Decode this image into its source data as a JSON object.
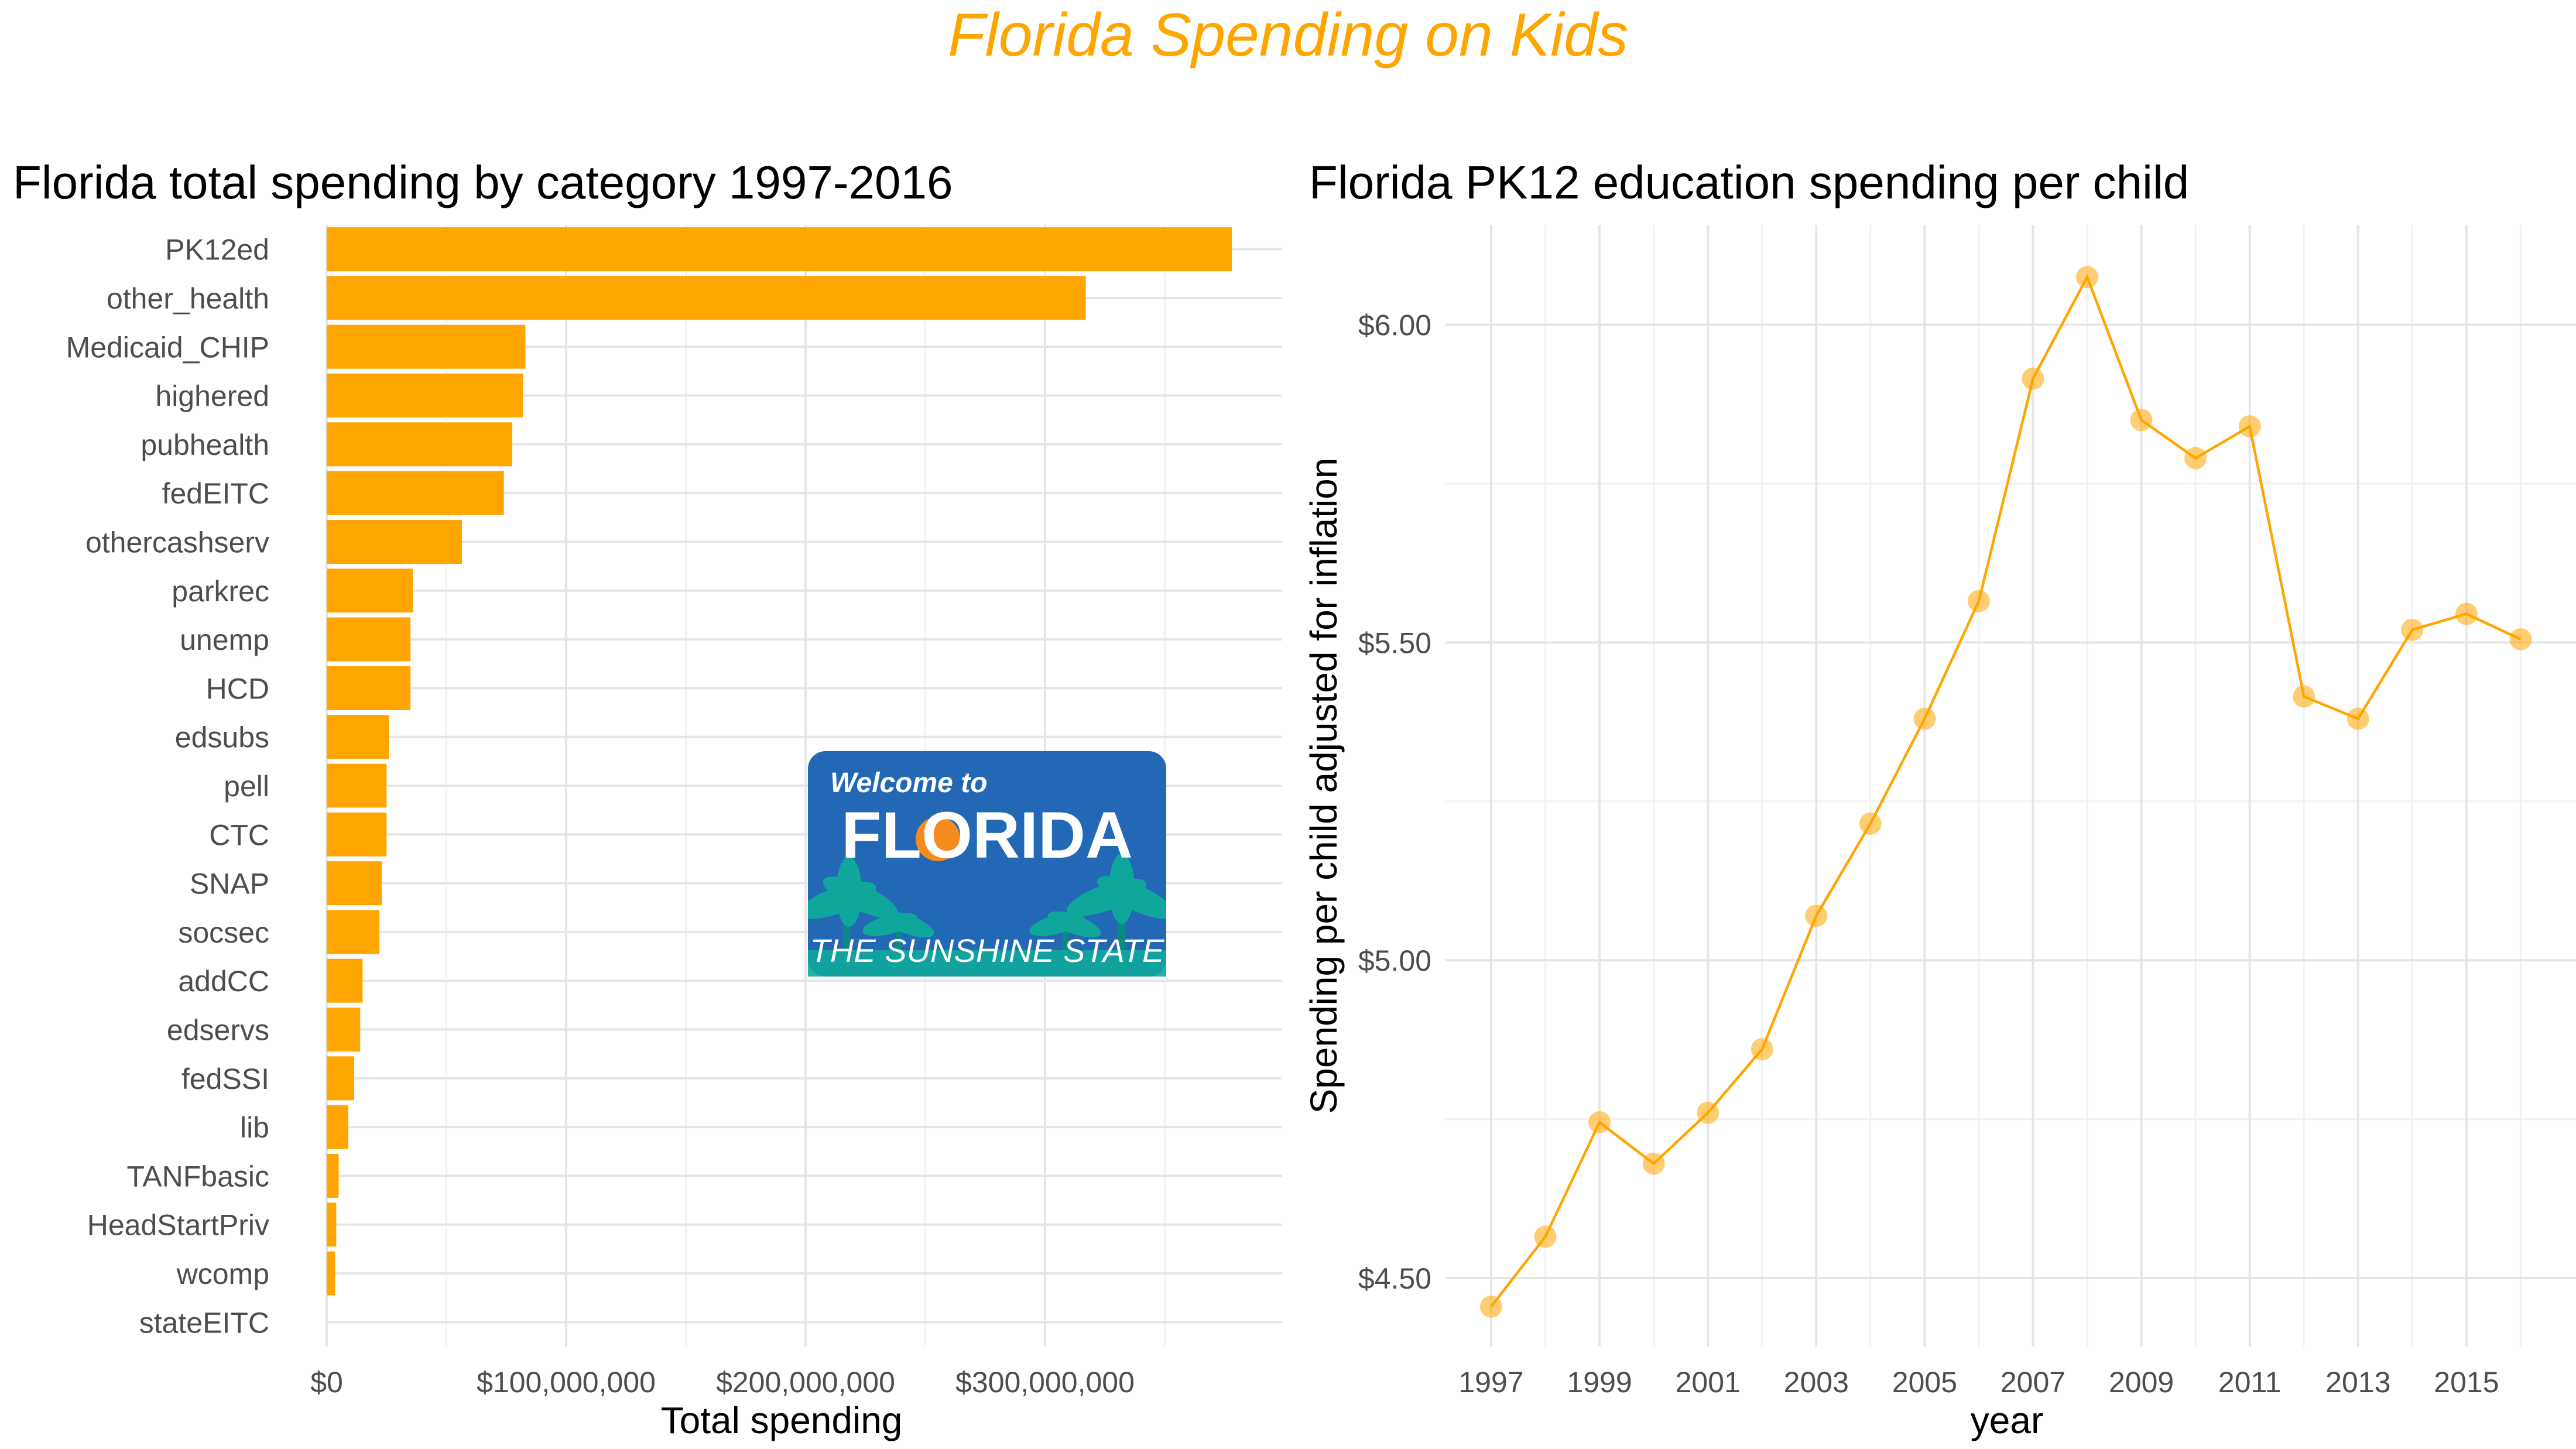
{
  "page": {
    "title": "Florida Spending on Kids",
    "title_color": "#FFA500"
  },
  "sign": {
    "line1": "Welcome to",
    "line2": "FLORIDA",
    "line3": "THE SUNSHINE STATE",
    "bg_color": "#2268b4",
    "palm_color": "#0fa79b",
    "sun_color": "#f58a1f"
  },
  "chart_data": [
    {
      "type": "bar",
      "orientation": "horizontal",
      "title": "Florida total spending by category 1997-2016",
      "xlabel": "Total spending",
      "ylabel": "",
      "color": "#FFA500",
      "grid": true,
      "xlim": [
        0,
        400000000
      ],
      "x_ticks": [
        0,
        100000000,
        200000000,
        300000000
      ],
      "x_tick_labels": [
        "$0",
        "$100,000,000",
        "$200,000,000",
        "$300,000,000"
      ],
      "categories": [
        "PK12ed",
        "other_health",
        "Medicaid_CHIP",
        "highered",
        "pubhealth",
        "fedEITC",
        "othercashserv",
        "parkrec",
        "unemp",
        "HCD",
        "edsubs",
        "pell",
        "CTC",
        "SNAP",
        "socsec",
        "addCC",
        "edservs",
        "fedSSI",
        "lib",
        "TANFbasic",
        "HeadStartPriv",
        "wcomp",
        "stateEITC"
      ],
      "values": [
        378000000,
        317000000,
        83000000,
        82000000,
        77500000,
        74000000,
        56500000,
        36000000,
        35000000,
        35000000,
        26000000,
        25000000,
        25000000,
        23000000,
        22000000,
        15000000,
        14000000,
        11500000,
        9000000,
        5000000,
        4000000,
        3500000,
        0
      ]
    },
    {
      "type": "line",
      "markers": true,
      "title": "Florida PK12 education spending per child",
      "xlabel": "year",
      "ylabel": "Spending per child adjusted for inflation",
      "color": "#FFA500",
      "grid": true,
      "xlim": [
        1996.9,
        2017.9
      ],
      "ylim": [
        4.4187,
        6.1713
      ],
      "x_ticks": [
        1997,
        1999,
        2001,
        2003,
        2005,
        2007,
        2009,
        2011,
        2013,
        2015
      ],
      "x_tick_labels": [
        "1997",
        "1999",
        "2001",
        "2003",
        "2005",
        "2007",
        "2009",
        "2011",
        "2013",
        "2015"
      ],
      "y_ticks": [
        4.5,
        5.0,
        5.5,
        6.0
      ],
      "y_tick_labels": [
        "$4.50",
        "$5.00",
        "$5.50",
        "$6.00"
      ],
      "x": [
        1997,
        1998,
        1999,
        2000,
        2001,
        2002,
        2003,
        2004,
        2005,
        2006,
        2007,
        2008,
        2009,
        2010,
        2011,
        2012,
        2013,
        2014,
        2015,
        2016
      ],
      "y": [
        4.455,
        4.565,
        4.745,
        4.68,
        4.76,
        4.86,
        5.07,
        5.215,
        5.38,
        5.565,
        5.915,
        6.075,
        5.85,
        5.79,
        5.84,
        5.415,
        5.38,
        5.52,
        5.545,
        5.505
      ]
    }
  ]
}
